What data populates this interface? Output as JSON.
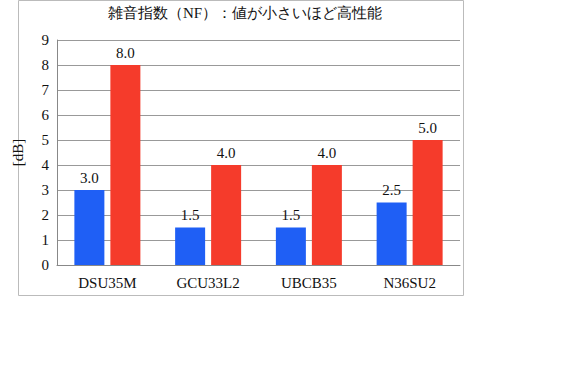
{
  "chart_data": {
    "type": "bar",
    "title": "雑音指数（NF）：値が小さいほど高性能",
    "ylabel": "[dB]",
    "categories": [
      "DSU35M",
      "GCU33L2",
      "UBCB35",
      "N36SU2"
    ],
    "series": [
      {
        "color": "#1f5ff5",
        "values": [
          3,
          1.5,
          1.5,
          2.5
        ],
        "value_labels": [
          "3.0",
          "1.5",
          "1.5",
          "2.5"
        ]
      },
      {
        "color": "#f53b2b",
        "values": [
          8,
          4,
          4,
          5
        ],
        "value_labels": [
          "8.0",
          "4.0",
          "4.0",
          "5.0"
        ]
      }
    ],
    "ylim": [
      0,
      9
    ],
    "yticks": [
      0,
      1,
      2,
      3,
      4,
      5,
      6,
      7,
      8,
      9
    ],
    "grid": true,
    "data_labels": true
  }
}
